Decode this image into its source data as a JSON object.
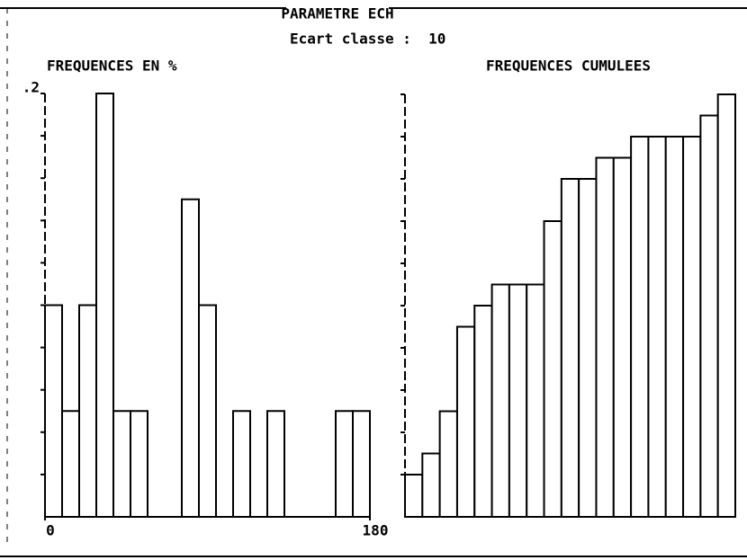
{
  "header": {
    "title": "PARAMETRE ECH",
    "subtitle": "Ecart classe :  10"
  },
  "chart_data": [
    {
      "type": "bar",
      "title": "FREQUENCES EN %",
      "values": [
        0.1,
        0.05,
        0.1,
        0.2,
        0.05,
        0.05,
        0,
        0,
        0.15,
        0.1,
        0,
        0.05,
        0,
        0.05,
        0,
        0,
        0,
        0.05,
        0.05
      ],
      "ylim": [
        0,
        0.2
      ],
      "yticks": [
        {
          "value": 0.2,
          "label": ".2"
        }
      ],
      "minor_yticks": [
        0.02,
        0.04,
        0.06,
        0.08,
        0.1,
        0.12,
        0.14,
        0.16,
        0.18
      ],
      "xlim": [
        0,
        180
      ],
      "xticks": [
        0,
        180
      ],
      "color": "#ffffff"
    },
    {
      "type": "bar",
      "title": "FREQUENCES CUMULEES",
      "values": [
        0.1,
        0.15,
        0.25,
        0.45,
        0.5,
        0.55,
        0.55,
        0.55,
        0.7,
        0.8,
        0.8,
        0.85,
        0.85,
        0.9,
        0.9,
        0.9,
        0.9,
        0.95,
        1.0
      ],
      "ylim": [
        0,
        1
      ],
      "minor_yticks": [
        0.1,
        0.2,
        0.3,
        0.4,
        0.5,
        0.6,
        0.7,
        0.8,
        0.9,
        1.0
      ],
      "color": "#ffffff"
    }
  ]
}
